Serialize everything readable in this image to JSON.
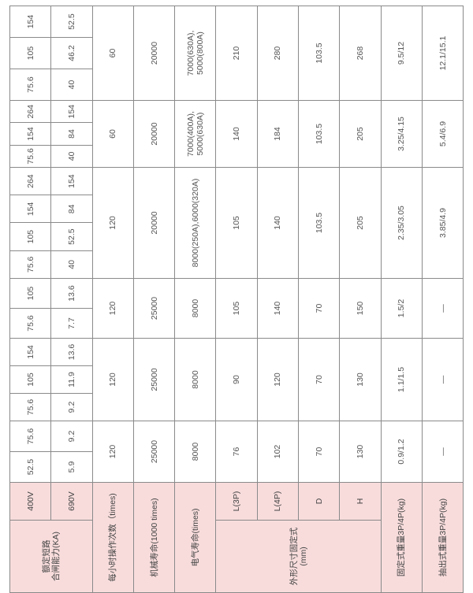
{
  "header": {
    "ka_label": "额定短路\n合闸能力(KA)",
    "v400": "400V",
    "v690": "690V",
    "ops_per_hour": "每小时操作次数（times)",
    "mech_life": "机械寿命(1000 times)",
    "elec_life": "电气寿命(times)",
    "dims_label": "外形尺寸固定式\n(mm)",
    "L3P": "L(3P)",
    "L4P": "L(4P)",
    "D": "D",
    "H": "H",
    "fixed_weight": "固定式重量3P/4P(kg)",
    "drawout_weight": "抽出式重量3P/4P(kg)"
  },
  "groups": [
    {
      "v400": [
        "52.5",
        "75.6"
      ],
      "v690": [
        "5.9",
        "9.2"
      ],
      "ops": "120",
      "mech": "25000",
      "elec": "8000",
      "L3P": "76",
      "L4P": "102",
      "D": "70",
      "H": "130",
      "fixed_weight": "0.9/1.2",
      "drawout_weight": "—"
    },
    {
      "v400": [
        "75.6",
        "105",
        "154"
      ],
      "v690": [
        "9.2",
        "11.9",
        "13.6"
      ],
      "ops": "120",
      "mech": "25000",
      "elec": "8000",
      "L3P": "90",
      "L4P": "120",
      "D": "70",
      "H": "130",
      "fixed_weight": "1.1/1.5",
      "drawout_weight": "—"
    },
    {
      "v400": [
        "75.6",
        "105"
      ],
      "v690": [
        "7.7",
        "13.6"
      ],
      "ops": "120",
      "mech": "25000",
      "elec": "8000",
      "L3P": "105",
      "L4P": "140",
      "D": "70",
      "H": "150",
      "fixed_weight": "1.5/2",
      "drawout_weight": "—"
    },
    {
      "v400": [
        "75.6",
        "105",
        "154",
        "264"
      ],
      "v690": [
        "40",
        "52.5",
        "84",
        "154"
      ],
      "ops": "120",
      "mech": "20000",
      "elec": "8000(250A),6000(320A)",
      "L3P": "105",
      "L4P": "140",
      "D": "103.5",
      "H": "205",
      "fixed_weight": "2.35/3.05",
      "drawout_weight": "3.85/4.9"
    },
    {
      "v400": [
        "75.6",
        "154",
        "264"
      ],
      "v690": [
        "40",
        "84",
        "154"
      ],
      "ops": "60",
      "mech": "20000",
      "elec": "7000(400A),\n5000(630A)",
      "L3P": "140",
      "L4P": "184",
      "D": "103.5",
      "H": "205",
      "fixed_weight": "3.25/4.15",
      "drawout_weight": "5.4/6.9"
    },
    {
      "v400": [
        "75.6",
        "105",
        "154"
      ],
      "v690": [
        "40",
        "46.2",
        "52.5"
      ],
      "ops": "60",
      "mech": "20000",
      "elec": "7000(630A),\n5000(800A)",
      "L3P": "210",
      "L4P": "280",
      "D": "103.5",
      "H": "268",
      "fixed_weight": "9.5/12",
      "drawout_weight": "12.1/15.1"
    }
  ],
  "colors": {
    "header_bg": "#f8dcdc",
    "border": "#8a8a8a",
    "text": "#555555"
  }
}
